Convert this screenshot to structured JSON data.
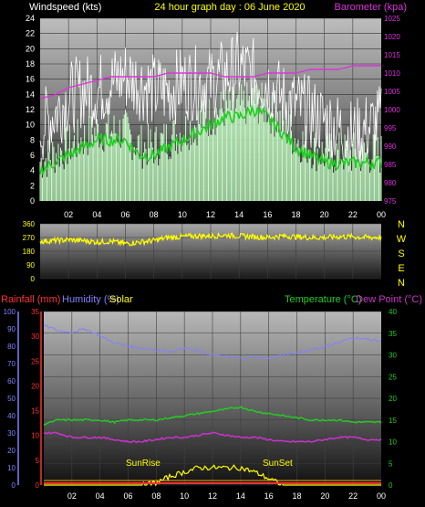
{
  "header": {
    "left": "Windspeed (kts)",
    "center": "24 hour graph day : 06 June 2020",
    "right": "Barometer (kpa)"
  },
  "colors": {
    "wind": "#ffffff",
    "gust_area": "#c8ffc8",
    "avg": "#22cc22",
    "baro": "#dd33dd",
    "dir": "#ffff00",
    "humidity": "#8080ff",
    "temp": "#22cc22",
    "dew": "#cc33cc",
    "solar": "#ffff00",
    "rain": "#ff3333"
  },
  "direction_labels": [
    "N",
    "W",
    "S",
    "E",
    "N"
  ],
  "bottom_labels": {
    "rainfall": "Rainfall (mm)",
    "humidity": "Humidity (%)",
    "solar": "Solar",
    "temperature": "Temperature (°C)",
    "dew": "Dew Point (°C)",
    "sunrise": "SunRise",
    "sunset": "SunSet"
  },
  "x_ticks": [
    "02",
    "04",
    "06",
    "08",
    "10",
    "12",
    "14",
    "16",
    "18",
    "20",
    "22",
    "00"
  ],
  "chart_data": [
    {
      "type": "line",
      "name": "wind-panel",
      "x_hours": [
        0,
        1,
        2,
        3,
        4,
        5,
        6,
        7,
        8,
        9,
        10,
        11,
        12,
        13,
        14,
        15,
        16,
        17,
        18,
        19,
        20,
        21,
        22,
        23,
        24
      ],
      "series": [
        {
          "name": "Windspeed (kts)",
          "axis": "left",
          "values": [
            10,
            12,
            14,
            15,
            15,
            16,
            17,
            16,
            15,
            15,
            16,
            16,
            16,
            17,
            18,
            17,
            16,
            14,
            13,
            12,
            11,
            10,
            9,
            10,
            11
          ]
        },
        {
          "name": "avg",
          "axis": "left",
          "values": [
            4,
            5,
            6,
            7,
            8,
            8,
            8,
            6,
            6,
            7,
            8,
            9,
            10,
            11,
            11,
            12,
            11,
            9,
            7,
            6,
            5,
            5,
            5,
            5,
            5
          ]
        },
        {
          "name": "Barometer (kpa)",
          "axis": "right",
          "values": [
            1003,
            1004,
            1006,
            1007,
            1008,
            1009,
            1009,
            1009,
            1009,
            1010,
            1010,
            1010,
            1010,
            1009,
            1009,
            1009,
            1010,
            1010,
            1010,
            1011,
            1011,
            1011,
            1012,
            1012,
            1012
          ]
        }
      ],
      "ylim_left": [
        0,
        24
      ],
      "yticks_left": [
        0,
        2,
        4,
        6,
        8,
        10,
        12,
        14,
        16,
        18,
        20,
        22,
        24
      ],
      "ylim_right": [
        975,
        1025
      ],
      "yticks_right": [
        975,
        980,
        985,
        990,
        995,
        1000,
        1005,
        1010,
        1015,
        1020,
        1025
      ]
    },
    {
      "type": "scatter",
      "name": "direction-panel",
      "x_hours": [
        0,
        1,
        2,
        3,
        4,
        5,
        6,
        7,
        8,
        9,
        10,
        11,
        12,
        13,
        14,
        15,
        16,
        17,
        18,
        19,
        20,
        21,
        22,
        23,
        24
      ],
      "series": [
        {
          "name": "direction",
          "values": [
            245,
            250,
            255,
            250,
            240,
            245,
            230,
            240,
            250,
            270,
            275,
            280,
            280,
            285,
            280,
            275,
            270,
            280,
            275,
            270,
            270,
            275,
            275,
            270,
            272
          ]
        }
      ],
      "ylim": [
        0,
        360
      ],
      "yticks": [
        0,
        90,
        180,
        270,
        360
      ]
    },
    {
      "type": "line",
      "name": "temp-panel",
      "x_hours": [
        0,
        1,
        2,
        3,
        4,
        5,
        6,
        7,
        8,
        9,
        10,
        11,
        12,
        13,
        14,
        15,
        16,
        17,
        18,
        19,
        20,
        21,
        22,
        23,
        24
      ],
      "series": [
        {
          "name": "Humidity (%)",
          "axis": "humidity",
          "values": [
            92,
            89,
            88,
            90,
            86,
            82,
            80,
            79,
            78,
            77,
            79,
            77,
            75,
            74,
            73,
            74,
            73,
            75,
            76,
            78,
            80,
            82,
            85,
            84,
            83
          ]
        },
        {
          "name": "Temperature (°C)",
          "axis": "right",
          "values": [
            14,
            15,
            15,
            15,
            15,
            14.5,
            15,
            15,
            15,
            15.5,
            16,
            16.5,
            17,
            17.5,
            18,
            17,
            16.5,
            16,
            15.5,
            15,
            15,
            15,
            14.5,
            14.5,
            14.5
          ]
        },
        {
          "name": "Dew Point (°C)",
          "axis": "right",
          "values": [
            12,
            12,
            11,
            11,
            11,
            10.5,
            10,
            10,
            10.5,
            11,
            11,
            11.5,
            12,
            11.5,
            11,
            11,
            10.5,
            10,
            10,
            10,
            10.5,
            11,
            11,
            10.5,
            10.5
          ]
        },
        {
          "name": "Solar",
          "axis": "solar",
          "values": [
            0,
            0,
            0,
            0,
            0,
            0,
            0,
            0,
            0.5,
            2,
            3,
            4,
            4,
            4,
            4,
            3,
            1.5,
            0,
            0,
            0,
            0,
            0,
            0,
            0,
            0
          ]
        },
        {
          "name": "Rainfall (mm)",
          "axis": "rain",
          "values": [
            0,
            0,
            0,
            0,
            0,
            0,
            0,
            0,
            0,
            0,
            0,
            0,
            0,
            0,
            0,
            0,
            0,
            0,
            0,
            0,
            0,
            0,
            0,
            0,
            0
          ]
        }
      ],
      "ylim_humidity": [
        0,
        100
      ],
      "yticks_humidity": [
        0,
        10,
        20,
        30,
        40,
        50,
        60,
        70,
        80,
        90,
        100
      ],
      "ylim_rain": [
        0,
        35
      ],
      "yticks_rain": [
        0,
        5,
        10,
        15,
        20,
        25,
        30,
        35
      ],
      "ylim_right": [
        0,
        40
      ],
      "yticks_right": [
        0,
        5,
        10,
        15,
        20,
        25,
        30,
        35,
        40
      ]
    }
  ]
}
